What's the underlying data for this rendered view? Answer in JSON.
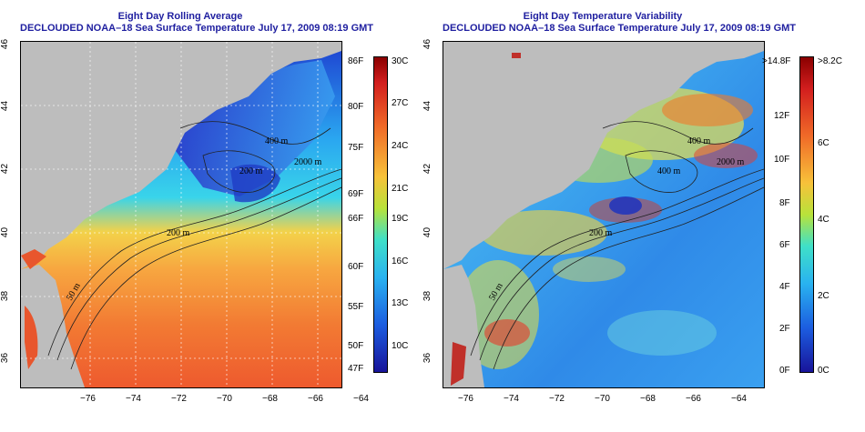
{
  "left_panel": {
    "title_line1": "Eight Day Rolling Average",
    "title_line2": "DECLOUDED NOAA–18 Sea Surface Temperature July 17, 2009 08:19 GMT",
    "contours": [
      "400 m",
      "2000 m",
      "200 m",
      "200 m",
      "50 m"
    ],
    "colorbar": {
      "f_labels": [
        "86F",
        "80F",
        "75F",
        "69F",
        "66F",
        "60F",
        "55F",
        "50F",
        "47F"
      ],
      "c_labels": [
        "30C",
        "27C",
        "24C",
        "21C",
        "19C",
        "16C",
        "13C",
        "10C"
      ]
    }
  },
  "right_panel": {
    "title_line1": "Eight Day Temperature Variability",
    "title_line2": "DECLOUDED NOAA–18 Sea Surface Temperature July 17, 2009 08:19 GMT",
    "contours": [
      "400 m",
      "2000 m",
      "400 m",
      "200 m",
      "50 m"
    ],
    "colorbar": {
      "f_labels": [
        ">14.8F",
        "12F",
        "10F",
        "8F",
        "6F",
        "4F",
        "2F",
        "0F"
      ],
      "c_labels": [
        ">8.2C",
        "6C",
        "4C",
        "2C",
        "0C"
      ]
    }
  },
  "axes": {
    "x_ticks": [
      "−76",
      "−74",
      "−72",
      "−70",
      "−68",
      "−66",
      "−64"
    ],
    "y_ticks": [
      "46",
      "44",
      "42",
      "40",
      "38",
      "36"
    ]
  },
  "colors": {
    "land": "#bdbdbd",
    "title": "#1f1fa0"
  }
}
